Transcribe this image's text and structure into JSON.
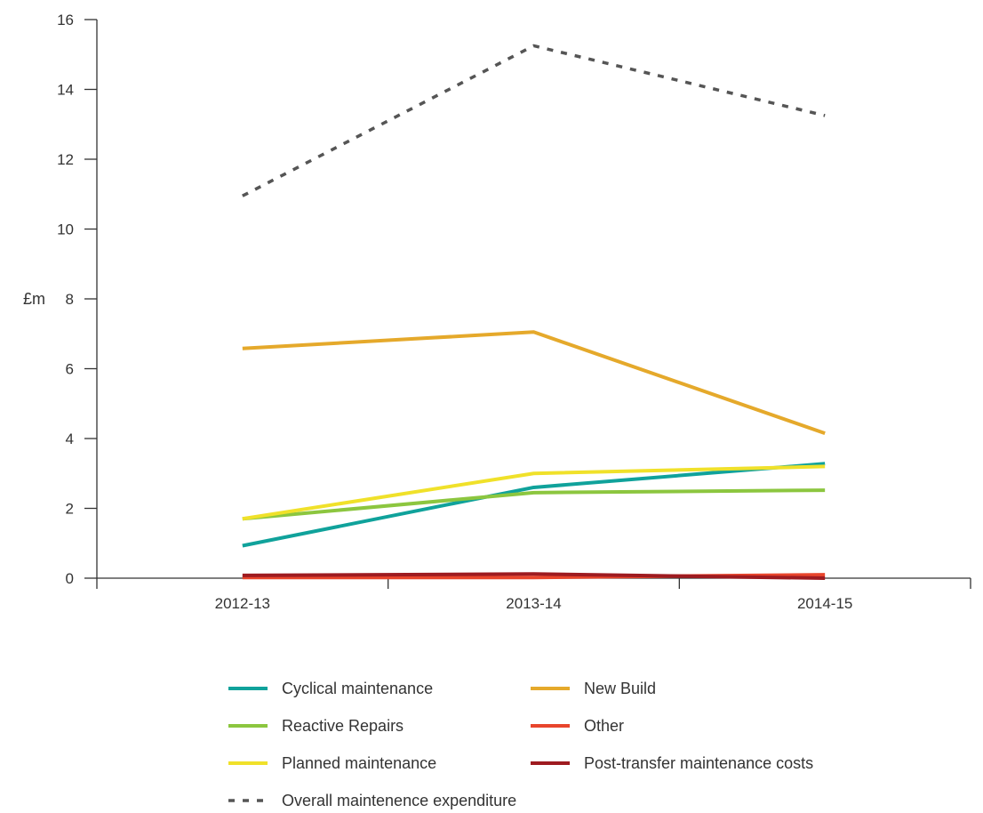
{
  "chart_data": {
    "type": "line",
    "title": "",
    "xlabel": "",
    "ylabel": "£m",
    "ylim": [
      0,
      16
    ],
    "yticks": [
      "0",
      "2",
      "4",
      "6",
      "8",
      "10",
      "12",
      "14",
      "16"
    ],
    "categories": [
      "2012-13",
      "2013-14",
      "2014-15"
    ],
    "grid": false,
    "legend_position": "bottom",
    "series": [
      {
        "name": "Cyclical maintenance",
        "color": "#10a29b",
        "dashed": false,
        "values": [
          0.93,
          2.6,
          3.28
        ]
      },
      {
        "name": "New Build",
        "color": "#e5a92b",
        "dashed": false,
        "values": [
          6.58,
          7.05,
          4.15
        ]
      },
      {
        "name": "Reactive Repairs",
        "color": "#8cc63f",
        "dashed": false,
        "values": [
          1.7,
          2.45,
          2.52
        ]
      },
      {
        "name": "Other",
        "color": "#e8452c",
        "dashed": false,
        "values": [
          0.02,
          0.02,
          0.1
        ]
      },
      {
        "name": "Planned maintenance",
        "color": "#f0e12a",
        "dashed": false,
        "values": [
          1.7,
          3.0,
          3.2
        ]
      },
      {
        "name": "Post-transfer maintenance costs",
        "color": "#9e1b20",
        "dashed": false,
        "values": [
          0.08,
          0.12,
          0.0
        ]
      },
      {
        "name": "Overall maintenence expenditure",
        "color": "#555555",
        "dashed": true,
        "values": [
          10.95,
          15.25,
          13.25
        ]
      }
    ]
  }
}
